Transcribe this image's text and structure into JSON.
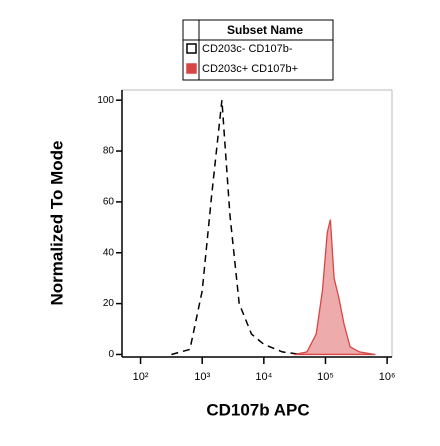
{
  "chart_data": {
    "type": "histogram-overlay",
    "x_label": "CD107b APC",
    "y_label": "Normalized To Mode",
    "legend_title": "Subset Name",
    "legend": "top",
    "xscale": "log",
    "xlim": [
      50,
      1200000
    ],
    "xticks": [
      {
        "value": 100,
        "label": "10²"
      },
      {
        "value": 1000,
        "label": "10³"
      },
      {
        "value": 10000,
        "label": "10⁴"
      },
      {
        "value": 100000,
        "label": "10⁵"
      },
      {
        "value": 1000000,
        "label": "10⁶"
      }
    ],
    "ylim": [
      -1,
      104
    ],
    "yticks": [
      0,
      20,
      40,
      60,
      80,
      100
    ],
    "series": [
      {
        "name": "CD203c- CD107b-",
        "color": "#000000",
        "dashed": true,
        "filled": false,
        "x": [
          316,
          631,
          1000,
          1413,
          2089,
          2818,
          3981,
          6310,
          10000,
          19953,
          39811
        ],
        "values": [
          0,
          2,
          25,
          62,
          100,
          55,
          20,
          8,
          4,
          1,
          0
        ]
      },
      {
        "name": "CD203c+ CD107b+",
        "color": "#d94545",
        "dashed": false,
        "filled": true,
        "x": [
          31623,
          50119,
          70795,
          89125,
          107152,
          120226,
          138038,
          165959,
          199526,
          251189,
          354813,
          630957
        ],
        "values": [
          0,
          1,
          8,
          25,
          48,
          53,
          30,
          22,
          12,
          3,
          1,
          0
        ]
      }
    ]
  }
}
